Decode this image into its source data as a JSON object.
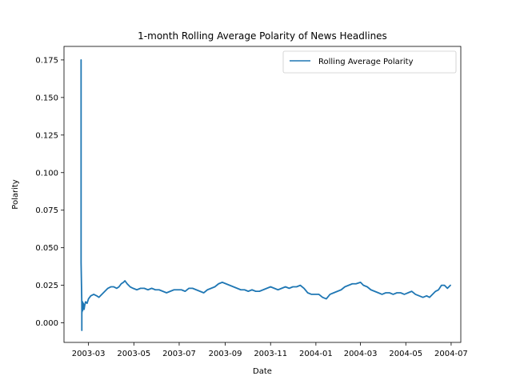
{
  "chart_data": {
    "type": "line",
    "title": "1-month Rolling Average Polarity of News Headlines",
    "xlabel": "Date",
    "ylabel": "Polarity",
    "xlim": [
      "2003-01-27",
      "2004-07-14"
    ],
    "ylim": [
      -0.013,
      0.184
    ],
    "x_ticks": [
      "2003-03",
      "2003-05",
      "2003-07",
      "2003-09",
      "2003-11",
      "2004-01",
      "2004-03",
      "2004-05",
      "2004-07"
    ],
    "y_ticks": [
      0.0,
      0.025,
      0.05,
      0.075,
      0.1,
      0.125,
      0.15,
      0.175
    ],
    "y_tick_labels": [
      "0.000",
      "0.025",
      "0.050",
      "0.075",
      "0.100",
      "0.125",
      "0.150",
      "0.175"
    ],
    "grid": false,
    "legend_position": "top-right",
    "series": [
      {
        "name": "Rolling Average Polarity",
        "color": "#1f77b4",
        "points": [
          [
            "2003-02-19",
            0.175
          ],
          [
            "2003-02-19",
            0.16
          ],
          [
            "2003-02-19",
            0.12
          ],
          [
            "2003-02-19",
            0.08
          ],
          [
            "2003-02-19",
            0.04
          ],
          [
            "2003-02-20",
            0.012
          ],
          [
            "2003-02-20",
            0.0
          ],
          [
            "2003-02-20",
            -0.005
          ],
          [
            "2003-02-20",
            0.006
          ],
          [
            "2003-02-21",
            0.014
          ],
          [
            "2003-02-21",
            0.008
          ],
          [
            "2003-02-22",
            0.013
          ],
          [
            "2003-02-23",
            0.009
          ],
          [
            "2003-02-24",
            0.012
          ],
          [
            "2003-02-25",
            0.014
          ],
          [
            "2003-02-27",
            0.013
          ],
          [
            "2003-03-01",
            0.016
          ],
          [
            "2003-03-04",
            0.018
          ],
          [
            "2003-03-08",
            0.019
          ],
          [
            "2003-03-12",
            0.018
          ],
          [
            "2003-03-15",
            0.017
          ],
          [
            "2003-03-19",
            0.019
          ],
          [
            "2003-03-23",
            0.021
          ],
          [
            "2003-03-27",
            0.023
          ],
          [
            "2003-03-31",
            0.024
          ],
          [
            "2003-04-04",
            0.024
          ],
          [
            "2003-04-08",
            0.023
          ],
          [
            "2003-04-11",
            0.024
          ],
          [
            "2003-04-14",
            0.026
          ],
          [
            "2003-04-17",
            0.027
          ],
          [
            "2003-04-19",
            0.028
          ],
          [
            "2003-04-22",
            0.026
          ],
          [
            "2003-04-26",
            0.024
          ],
          [
            "2003-04-30",
            0.023
          ],
          [
            "2003-05-05",
            0.022
          ],
          [
            "2003-05-10",
            0.023
          ],
          [
            "2003-05-15",
            0.023
          ],
          [
            "2003-05-20",
            0.022
          ],
          [
            "2003-05-25",
            0.023
          ],
          [
            "2003-05-30",
            0.022
          ],
          [
            "2003-06-04",
            0.022
          ],
          [
            "2003-06-09",
            0.021
          ],
          [
            "2003-06-14",
            0.02
          ],
          [
            "2003-06-19",
            0.021
          ],
          [
            "2003-06-24",
            0.022
          ],
          [
            "2003-06-29",
            0.022
          ],
          [
            "2003-07-04",
            0.022
          ],
          [
            "2003-07-09",
            0.021
          ],
          [
            "2003-07-14",
            0.023
          ],
          [
            "2003-07-19",
            0.023
          ],
          [
            "2003-07-24",
            0.022
          ],
          [
            "2003-07-29",
            0.021
          ],
          [
            "2003-08-03",
            0.02
          ],
          [
            "2003-08-08",
            0.022
          ],
          [
            "2003-08-13",
            0.023
          ],
          [
            "2003-08-18",
            0.024
          ],
          [
            "2003-08-23",
            0.026
          ],
          [
            "2003-08-28",
            0.027
          ],
          [
            "2003-09-02",
            0.026
          ],
          [
            "2003-09-07",
            0.025
          ],
          [
            "2003-09-12",
            0.024
          ],
          [
            "2003-09-17",
            0.023
          ],
          [
            "2003-09-22",
            0.022
          ],
          [
            "2003-09-27",
            0.022
          ],
          [
            "2003-10-02",
            0.021
          ],
          [
            "2003-10-07",
            0.022
          ],
          [
            "2003-10-12",
            0.021
          ],
          [
            "2003-10-17",
            0.021
          ],
          [
            "2003-10-22",
            0.022
          ],
          [
            "2003-10-27",
            0.023
          ],
          [
            "2003-11-01",
            0.024
          ],
          [
            "2003-11-06",
            0.023
          ],
          [
            "2003-11-11",
            0.022
          ],
          [
            "2003-11-16",
            0.023
          ],
          [
            "2003-11-21",
            0.024
          ],
          [
            "2003-11-26",
            0.023
          ],
          [
            "2003-12-01",
            0.024
          ],
          [
            "2003-12-06",
            0.024
          ],
          [
            "2003-12-11",
            0.025
          ],
          [
            "2003-12-16",
            0.023
          ],
          [
            "2003-12-21",
            0.02
          ],
          [
            "2003-12-26",
            0.019
          ],
          [
            "2003-12-31",
            0.019
          ],
          [
            "2004-01-05",
            0.019
          ],
          [
            "2004-01-10",
            0.017
          ],
          [
            "2004-01-15",
            0.016
          ],
          [
            "2004-01-20",
            0.019
          ],
          [
            "2004-01-25",
            0.02
          ],
          [
            "2004-01-30",
            0.021
          ],
          [
            "2004-02-04",
            0.022
          ],
          [
            "2004-02-09",
            0.024
          ],
          [
            "2004-02-14",
            0.025
          ],
          [
            "2004-02-19",
            0.026
          ],
          [
            "2004-02-24",
            0.026
          ],
          [
            "2004-03-01",
            0.027
          ],
          [
            "2004-03-05",
            0.025
          ],
          [
            "2004-03-10",
            0.024
          ],
          [
            "2004-03-15",
            0.022
          ],
          [
            "2004-03-20",
            0.021
          ],
          [
            "2004-03-25",
            0.02
          ],
          [
            "2004-03-30",
            0.019
          ],
          [
            "2004-04-04",
            0.02
          ],
          [
            "2004-04-09",
            0.02
          ],
          [
            "2004-04-14",
            0.019
          ],
          [
            "2004-04-19",
            0.02
          ],
          [
            "2004-04-24",
            0.02
          ],
          [
            "2004-04-29",
            0.019
          ],
          [
            "2004-05-04",
            0.02
          ],
          [
            "2004-05-09",
            0.021
          ],
          [
            "2004-05-14",
            0.019
          ],
          [
            "2004-05-19",
            0.018
          ],
          [
            "2004-05-24",
            0.017
          ],
          [
            "2004-05-29",
            0.018
          ],
          [
            "2004-06-02",
            0.017
          ],
          [
            "2004-06-06",
            0.019
          ],
          [
            "2004-06-10",
            0.021
          ],
          [
            "2004-06-14",
            0.022
          ],
          [
            "2004-06-18",
            0.025
          ],
          [
            "2004-06-22",
            0.025
          ],
          [
            "2004-06-26",
            0.023
          ],
          [
            "2004-06-30",
            0.025
          ]
        ]
      }
    ]
  }
}
